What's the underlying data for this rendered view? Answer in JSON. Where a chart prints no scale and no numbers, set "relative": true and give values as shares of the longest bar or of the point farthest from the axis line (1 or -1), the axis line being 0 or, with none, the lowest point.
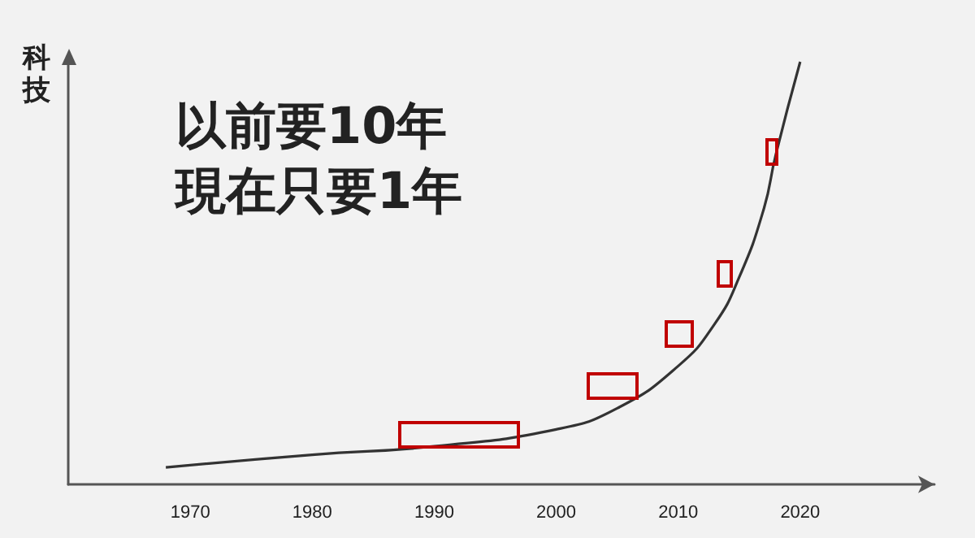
{
  "chart_data": {
    "type": "line",
    "title": "以前要10年",
    "subtitle": "現在只要1年",
    "ylabel": "科技",
    "relative": true,
    "x": [
      1968,
      1980,
      1990,
      2000,
      2005,
      2010,
      2013,
      2015,
      2017,
      2018,
      2020
    ],
    "xlim": [
      1960,
      2031
    ],
    "xticks": [
      1970,
      1980,
      1990,
      2000,
      2010,
      2020
    ],
    "series": [
      {
        "color": "#333333",
        "values": [
          0.04,
          0.07,
          0.09,
          0.13,
          0.18,
          0.28,
          0.38,
          0.49,
          0.65,
          0.78,
          1
        ]
      }
    ],
    "marker": "none",
    "grid": false,
    "tick_labels": "x"
  }
}
